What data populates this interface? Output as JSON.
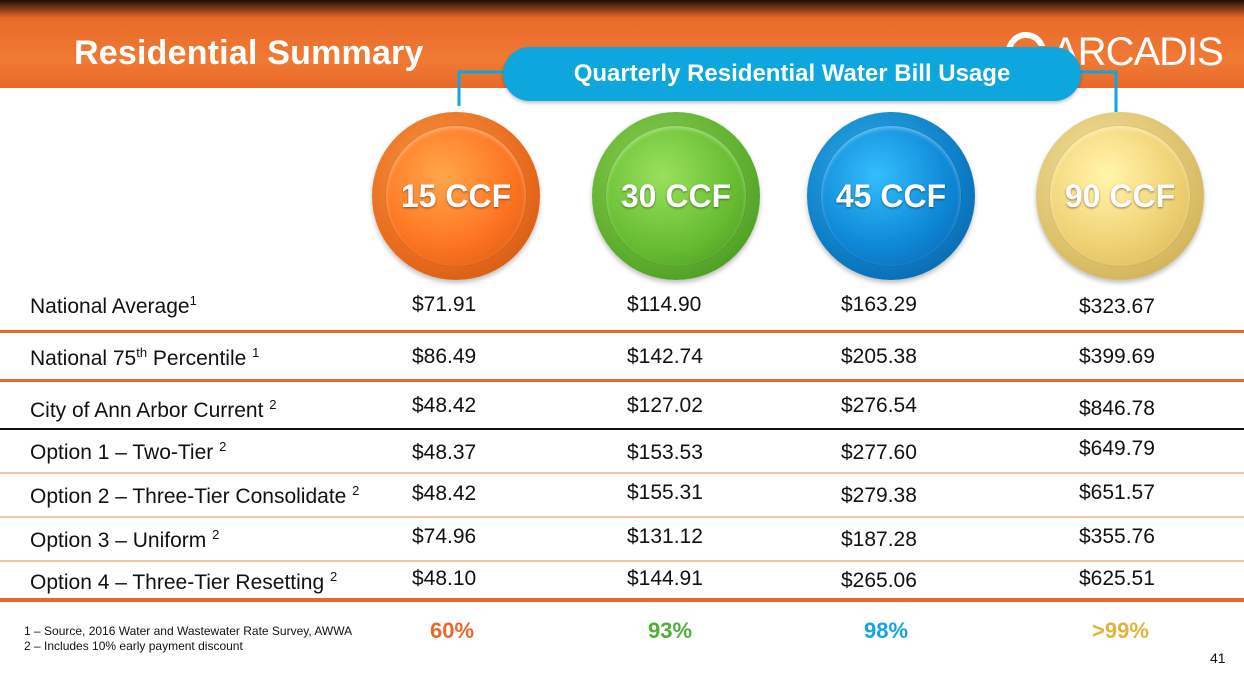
{
  "header": {
    "title": "Residential Summary",
    "logo_text": "ARCADIS",
    "banner": "Quarterly Residential Water Bill Usage"
  },
  "usage_levels": [
    "15 CCF",
    "30 CCF",
    "45 CCF",
    "90 CCF"
  ],
  "rows": [
    {
      "label": "National Average",
      "sup_pre": "",
      "sup": "1",
      "values": [
        "$71.91",
        "$114.90",
        "$163.29",
        "$323.67"
      ]
    },
    {
      "label": "National 75",
      "sup_pre": "th",
      "label_rest": " Percentile ",
      "sup": "1",
      "values": [
        "$86.49",
        "$142.74",
        "$205.38",
        "$399.69"
      ]
    },
    {
      "label": "City of Ann Arbor Current ",
      "sup_pre": "",
      "sup": "2",
      "values": [
        "$48.42",
        "$127.02",
        "$276.54",
        "$846.78"
      ]
    },
    {
      "label": "Option 1 – Two-Tier ",
      "sup_pre": "",
      "sup": "2",
      "values": [
        "$48.37",
        "$153.53",
        "$277.60",
        "$649.79"
      ]
    },
    {
      "label": "Option 2 – Three-Tier Consolidate ",
      "sup_pre": "",
      "sup": "2",
      "values": [
        "$48.42",
        "$155.31",
        "$279.38",
        "$651.57"
      ]
    },
    {
      "label": "Option 3 – Uniform ",
      "sup_pre": "",
      "sup": "2",
      "values": [
        "$74.96",
        "$131.12",
        "$187.28",
        "$355.76"
      ]
    },
    {
      "label": "Option 4 – Three-Tier Resetting ",
      "sup_pre": "",
      "sup": "2",
      "values": [
        "$48.10",
        "$144.91",
        "$265.06",
        "$625.51"
      ]
    }
  ],
  "percentages": [
    "60%",
    "93%",
    "98%",
    ">99%"
  ],
  "footnotes": [
    "1 – Source, 2016 Water and Wastewater Rate Survey, AWWA",
    "2 – Includes 10% early payment discount"
  ],
  "page_number": "41",
  "colors": {
    "orange": "#e8692a",
    "green": "#4fae3a",
    "blue": "#12a6de",
    "gold": "#e0b43c"
  }
}
